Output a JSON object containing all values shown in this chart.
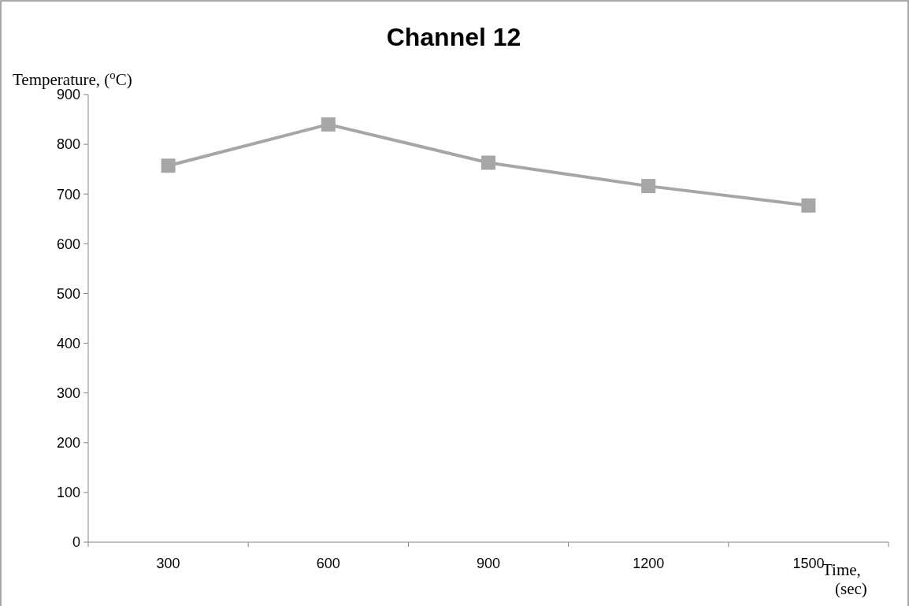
{
  "chart_data": {
    "type": "line",
    "title": "Channel 12",
    "ylabel": "Temperature, ($^{o}$C)",
    "xlabel": "Time, (sec)",
    "categories": [
      "300",
      "600",
      "900",
      "1200",
      "1500"
    ],
    "series": [
      {
        "color": "#a6a6a6",
        "values": [
          757,
          840,
          763,
          716,
          677
        ]
      }
    ],
    "ylim": [
      0,
      900
    ],
    "yticks": [
      0,
      100,
      200,
      300,
      400,
      500,
      600,
      700,
      800,
      900
    ],
    "grid": false,
    "marker": "square",
    "line_style": "solid"
  }
}
